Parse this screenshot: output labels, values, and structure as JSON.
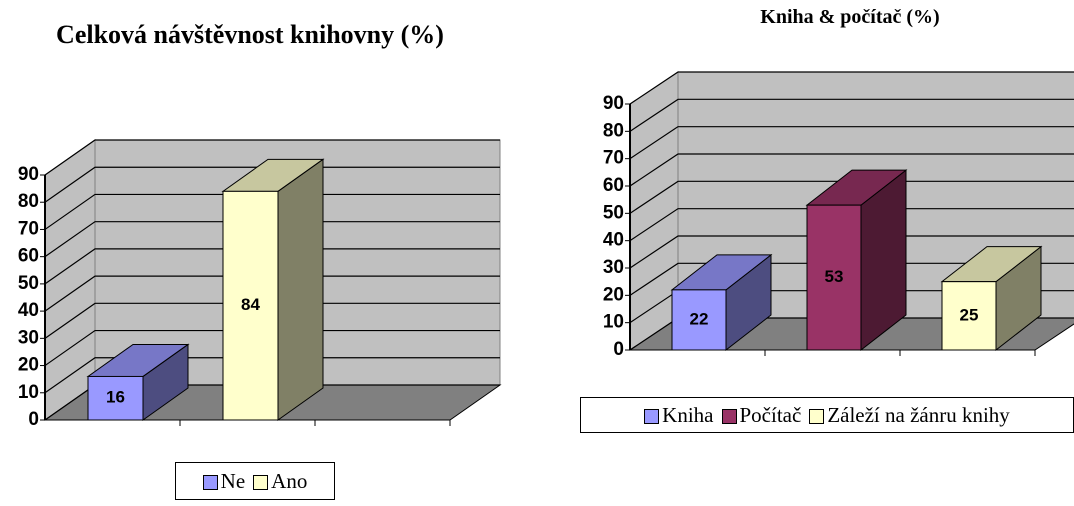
{
  "chart_data": [
    {
      "type": "bar3d",
      "title": "Celková návštěvnost knihovny (%)",
      "series": [
        {
          "name": "Ne",
          "color": "#9999ff",
          "values": [
            16
          ]
        },
        {
          "name": "Ano",
          "color": "#ffffcc",
          "values": [
            84
          ]
        }
      ],
      "ylim": [
        0,
        90
      ],
      "yticks": [
        0,
        10,
        20,
        30,
        40,
        50,
        60,
        70,
        80,
        90
      ],
      "grid": true,
      "legend": "bottom"
    },
    {
      "type": "bar3d",
      "title": "Kniha & počítač (%)",
      "series": [
        {
          "name": "Kniha",
          "color": "#9999ff",
          "values": [
            22
          ]
        },
        {
          "name": "Počítač",
          "color": "#993366",
          "values": [
            53
          ]
        },
        {
          "name": "Záleží na žánru knihy",
          "color": "#ffffcc",
          "values": [
            25
          ]
        }
      ],
      "ylim": [
        0,
        90
      ],
      "yticks": [
        0,
        10,
        20,
        30,
        40,
        50,
        60,
        70,
        80,
        90
      ],
      "grid": true,
      "legend": "bottom"
    }
  ]
}
